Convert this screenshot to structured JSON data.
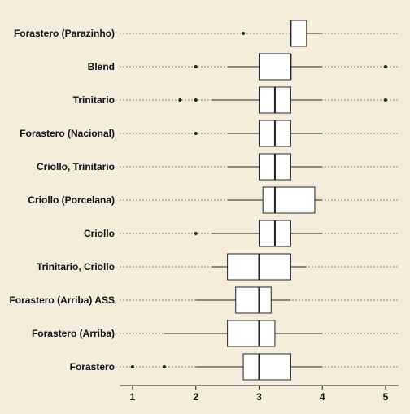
{
  "chart_data": {
    "type": "boxplot",
    "orientation": "horizontal",
    "xlim": [
      0.8,
      5.2
    ],
    "xticks": [
      1,
      2,
      3,
      4,
      5
    ],
    "tick_labels": [
      "1",
      "2",
      "3",
      "4",
      "5"
    ],
    "grid": false,
    "colors": {
      "background": "#f5ecdc",
      "box_fill": "#ffffff",
      "line": "#222222"
    },
    "categories": [
      "Forastero (Parazinho)",
      "Blend",
      "Trinitario",
      "Forastero (Nacional)",
      "Criollo, Trinitario",
      "Criollo (Porcelana)",
      "Criollo",
      "Trinitario, Criollo",
      "Forastero (Arriba) ASS",
      "Forastero (Arriba)",
      "Forastero"
    ],
    "boxes": [
      {
        "whisker_low": 3.5,
        "q1": 3.5,
        "median": 3.5,
        "q3": 3.75,
        "whisker_high": 4.0,
        "outliers": [
          2.75
        ]
      },
      {
        "whisker_low": 2.5,
        "q1": 3.0,
        "median": 3.5,
        "q3": 3.5,
        "whisker_high": 4.0,
        "outliers": [
          2.0,
          5.0
        ]
      },
      {
        "whisker_low": 2.25,
        "q1": 3.0,
        "median": 3.25,
        "q3": 3.5,
        "whisker_high": 4.0,
        "outliers": [
          1.75,
          2.0,
          5.0
        ]
      },
      {
        "whisker_low": 2.5,
        "q1": 3.0,
        "median": 3.25,
        "q3": 3.5,
        "whisker_high": 4.0,
        "outliers": [
          2.0
        ]
      },
      {
        "whisker_low": 2.5,
        "q1": 3.0,
        "median": 3.25,
        "q3": 3.5,
        "whisker_high": 4.0,
        "outliers": []
      },
      {
        "whisker_low": 2.5,
        "q1": 3.06,
        "median": 3.25,
        "q3": 3.88,
        "whisker_high": 4.0,
        "outliers": []
      },
      {
        "whisker_low": 2.25,
        "q1": 3.0,
        "median": 3.25,
        "q3": 3.5,
        "whisker_high": 4.0,
        "outliers": [
          2.0
        ]
      },
      {
        "whisker_low": 2.25,
        "q1": 2.5,
        "median": 3.0,
        "q3": 3.5,
        "whisker_high": 3.75,
        "outliers": []
      },
      {
        "whisker_low": 2.0,
        "q1": 2.63,
        "median": 3.0,
        "q3": 3.19,
        "whisker_high": 3.5,
        "outliers": []
      },
      {
        "whisker_low": 1.5,
        "q1": 2.5,
        "median": 3.0,
        "q3": 3.25,
        "whisker_high": 4.0,
        "outliers": []
      },
      {
        "whisker_low": 2.0,
        "q1": 2.75,
        "median": 3.0,
        "q3": 3.5,
        "whisker_high": 4.0,
        "outliers": [
          1.0,
          1.5
        ]
      }
    ]
  }
}
